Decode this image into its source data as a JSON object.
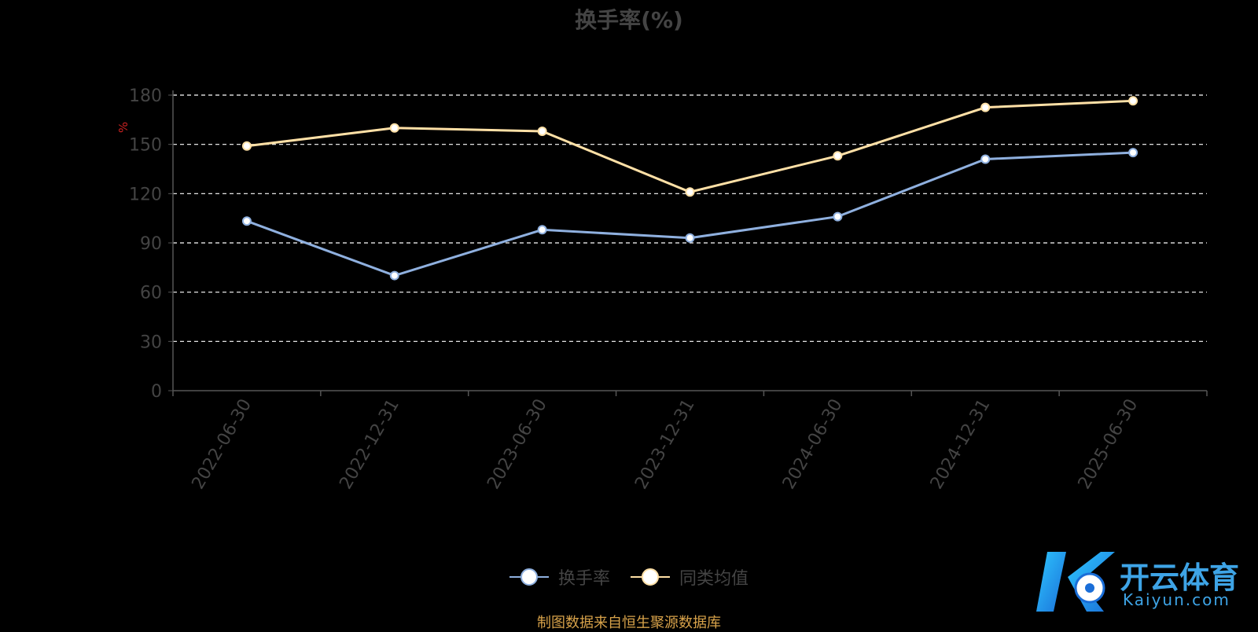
{
  "chart_data": {
    "type": "line",
    "title": "换手率(%)",
    "ylabel": "%",
    "ylim": [
      0,
      180
    ],
    "yticks": [
      0,
      30,
      60,
      90,
      120,
      150,
      180
    ],
    "categories": [
      "2022-06-30",
      "2022-12-31",
      "2023-06-30",
      "2023-12-31",
      "2024-06-30",
      "2024-12-31",
      "2025-06-30"
    ],
    "grid": true,
    "legend_position": "bottom-center",
    "series": [
      {
        "name": "换手率",
        "color": "#8fb0df",
        "values": [
          103.3,
          70.1,
          98.0,
          93.0,
          106.0,
          141.0,
          145.0
        ]
      },
      {
        "name": "同类均值",
        "color": "#ffe0a6",
        "values": [
          149.0,
          160.0,
          158.0,
          121.0,
          143.0,
          172.5,
          176.5
        ]
      }
    ]
  },
  "footer": {
    "source": "制图数据来自恒生聚源数据库"
  },
  "watermark": {
    "name": "开云体育",
    "site": "Kaiyun.com"
  }
}
